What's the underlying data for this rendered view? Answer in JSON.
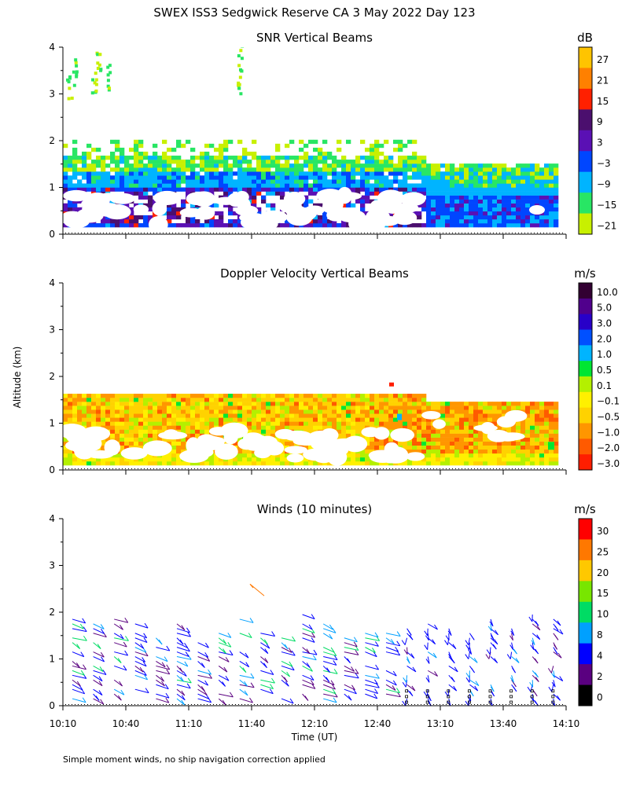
{
  "title": "SWEX ISS3 Sedgwick Reserve CA   3 May 2022 Day 123",
  "y_axis_label": "Altitude (km)",
  "x_axis_label": "Time (UT)",
  "footnote": "Simple moment winds, no ship navigation correction applied",
  "chart_data": [
    {
      "type": "heatmap",
      "title": "SNR Vertical Beams",
      "unit": "dB",
      "y_ticks": [
        "0",
        "1",
        "2",
        "3",
        "4"
      ],
      "ylim": [
        0,
        4
      ],
      "colorbar_labels": [
        "27",
        "21",
        "15",
        "9",
        "3",
        "−3",
        "−9",
        "−15",
        "−21"
      ],
      "colorbar_colors": [
        "#ffc400",
        "#ff8000",
        "#ff2000",
        "#4b0f6e",
        "#5a10b4",
        "#0046ff",
        "#00b4ff",
        "#28e664",
        "#c8f000"
      ],
      "description": "High SNR (blue/purple/red) below ~1 km, moderate (cyan/green) 1-1.6 km, sparse green/yellow echoes 1.6-2 km and near 3-4 km early in the day"
    },
    {
      "type": "heatmap",
      "title": "Doppler Velocity Vertical Beams",
      "unit": "m/s",
      "y_ticks": [
        "0",
        "1",
        "2",
        "3",
        "4"
      ],
      "ylim": [
        0,
        4
      ],
      "colorbar_labels": [
        "10.0",
        "5.0",
        "3.0",
        "2.0",
        "1.0",
        "0.5",
        "0.1",
        "−0.1",
        "−0.5",
        "−1.0",
        "−2.0",
        "−3.0"
      ],
      "colorbar_colors": [
        "#320032",
        "#50008c",
        "#2800c8",
        "#0050ff",
        "#00b4ff",
        "#00e632",
        "#b4f000",
        "#fff000",
        "#ffd200",
        "#ff9600",
        "#ff5a00",
        "#ff1e00"
      ],
      "description": "Mostly yellow/orange near-zero downward velocities from 0.1 to 1.5 km"
    },
    {
      "type": "scatter",
      "title": "Winds (10 minutes)",
      "unit": "m/s",
      "y_ticks": [
        "0",
        "1",
        "2",
        "3",
        "4"
      ],
      "ylim": [
        0,
        4
      ],
      "colorbar_labels": [
        "30",
        "25",
        "20",
        "15",
        "10",
        "8",
        "4",
        "2",
        "0"
      ],
      "colorbar_colors": [
        "#ff0000",
        "#ff7800",
        "#ffc800",
        "#78e600",
        "#00dc64",
        "#00a0ff",
        "#0000ff",
        "#5a0080",
        "#000000"
      ],
      "description": "Wind barbs every 10 minutes from near surface up to about 2 km, mostly 4-10 m/s"
    }
  ],
  "time_ticks": [
    "10:10",
    "10:40",
    "11:10",
    "11:40",
    "12:10",
    "12:40",
    "13:10",
    "13:40",
    "14:10"
  ]
}
